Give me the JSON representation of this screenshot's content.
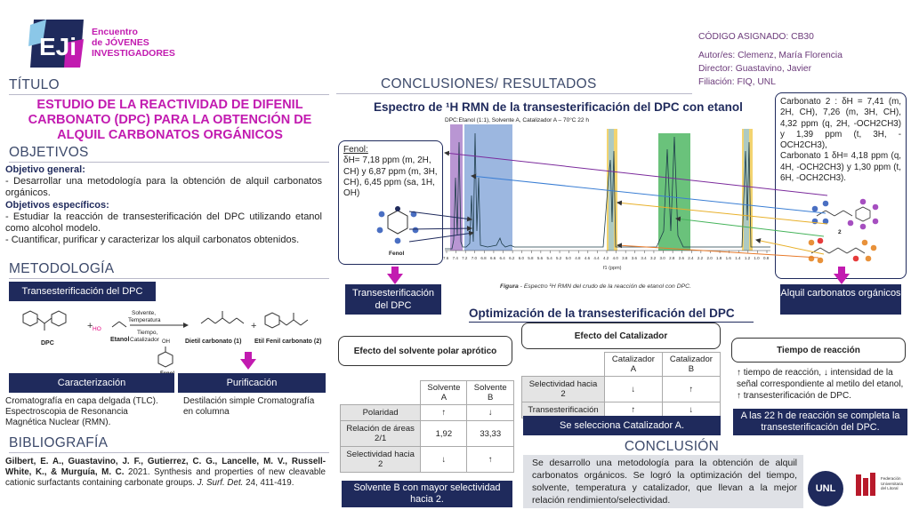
{
  "header": {
    "logo_text": "EJi",
    "event_line1": "Encuentro",
    "event_line2": "de JÓVENES",
    "event_line3": "INVESTIGADORES",
    "code": "CÓDIGO ASIGNADO: CB30",
    "authors": "Autor/es: Clemenz, María Florencia",
    "director": "Director: Guastavino, Javier",
    "affiliation": "Filiación: FIQ, UNL"
  },
  "titulo": {
    "label": "TÍTULO",
    "text": "ESTUDIO DE LA REACTIVIDAD DE DIFENIL CARBONATO (DPC) PARA LA OBTENCIÓN DE ALQUIL CARBONATOS ORGÁNICOS"
  },
  "objetivos": {
    "label": "OBJETIVOS",
    "general_title": "Objetivo general:",
    "general_text": "- Desarrollar una metodología para la obtención de alquil carbonatos orgánicos.",
    "specific_title": "Objetivos específicos:",
    "specific_1": "- Estudiar la reacción de transesterificación del DPC utilizando etanol como alcohol modelo.",
    "specific_2": "- Cuantificar, purificar y caracterizar los alquil carbonatos obtenidos."
  },
  "metodologia": {
    "label": "METODOLOGÍA",
    "trans_box": "Transesterificación del DPC",
    "dpc": "DPC",
    "etanol": "Etanol",
    "cond1": "Solvente,",
    "cond2": "Temperatura",
    "cond3": "Tiempo,",
    "cond4": "Catalizador",
    "fenol": "Fenol",
    "product1": "Dietil carbonato (1)",
    "product2": "Etil Fenil carbonato (2)",
    "caracterizacion": "Caracterización",
    "purificacion": "Purificación",
    "caract_text": "Cromatografía en capa delgada (TLC). Espectroscopia de Resonancia Magnética Nuclear (RMN).",
    "purif_text": "Destilación simple Cromatografía en columna"
  },
  "bibliografia": {
    "label": "BIBLIOGRAFÍA",
    "authors": "Gilbert, E. A., Guastavino, J. F., Gutierrez, C. G., Lancelle, M. V., Russell-White, K., & Murguía, M. C.",
    "rest": " 2021. Synthesis and properties of new cleavable cationic surfactants containing carbonate groups. ",
    "journal": "J. Surf. Det.",
    "pages": " 24, 411-419."
  },
  "conclusiones": {
    "label": "CONCLUSIONES/ RESULTADOS",
    "spectrum_title": "Espectro de ¹H RMN de la transesterificación del DPC con etanol",
    "spectrum_sub": "DPC:Etanol (1:1), Solvente A, Catalizador A – 70°C 22 h",
    "figure_caption_bold": "Figura",
    "figure_caption": " - Espectro ¹H RMN  del crudo de la reacción de etanol con DPC.",
    "axis_label": "f1 (ppm)",
    "fenol_title": "Fenol:",
    "fenol_data": "δH= 7,18 ppm (m, 2H, CH) y 6,87 ppm (m, 3H, CH), 6,45 ppm (sa, 1H, OH)",
    "fenol_struct": "Fenol",
    "carb2_data": "Carbonato 2 : δH = 7,41 (m, 2H, CH), 7,26 (m, 3H, CH), 4,32 ppm (q, 2H, -OCH2CH3) y 1,39 ppm (t, 3H, -OCH2CH3),",
    "carb1_data": "Carbonato 1  δH= 4,18 ppm (q, 4H, -OCH2CH3) y 1,30 ppm (t, 6H, -OCH2CH3).",
    "label2": "2",
    "label1": "1",
    "trans_label": "Transesterificación del DPC",
    "alquil_label": "Alquil carbonatos orgánicos"
  },
  "optimizacion": {
    "title": "Optimización de la transesterificación del DPC",
    "solvente_title": "Efecto del solvente polar aprótico",
    "solvente_headers": [
      "",
      "Solvente A",
      "Solvente B"
    ],
    "solvente_rows": [
      [
        "Polaridad",
        "↑",
        "↓"
      ],
      [
        "Relación de áreas 2/1",
        "1,92",
        "33,33"
      ],
      [
        "Selectividad hacia 2",
        "↓",
        "↑"
      ]
    ],
    "solvente_result": "Solvente B con mayor selectividad hacia 2.",
    "catalizador_title": "Efecto del Catalizador",
    "catalizador_headers": [
      "",
      "Catalizador A",
      "Catalizador B"
    ],
    "catalizador_rows": [
      [
        "Selectividad hacia 2",
        "↓",
        "↑"
      ],
      [
        "Transesterificación",
        "↑",
        "↓"
      ]
    ],
    "catalizador_result": "Se selecciona Catalizador A.",
    "tiempo_title": "Tiempo de reacción",
    "tiempo_text": "↑ tiempo de reacción, ↓ intensidad de la señal correspondiente al metilo del etanol, ↑ transesterificación de DPC.",
    "tiempo_result": "A las 22 h de reacción se completa la transesterificación del DPC."
  },
  "conclusion": {
    "label": "CONCLUSIÓN",
    "text": "Se desarrollo una metodología para la obtención de alquil carbonatos orgánicos. Se logró la optimización del tiempo, solvente, temperatura y catalizador, que llevan a la mejor relación rendimiento/selectividad."
  },
  "logos": {
    "unl": "UNL",
    "fed1": "Federación",
    "fed2": "Universitaria",
    "fed3": "del Litoral"
  },
  "spectrum": {
    "ticks": [
      "7.6",
      "7.4",
      "7.2",
      "7.0",
      "6.8",
      "6.6",
      "6.4",
      "6.2",
      "6.0",
      "5.8",
      "5.6",
      "5.4",
      "5.2",
      "5.0",
      "4.8",
      "4.6",
      "4.4",
      "4.2",
      "4.0",
      "3.8",
      "3.6",
      "3.4",
      "3.2",
      "3.0",
      "2.8",
      "2.6",
      "2.4",
      "2.2",
      "2.0",
      "1.8",
      "1.6",
      "1.4",
      "1.2",
      "1.0",
      "0.8"
    ]
  }
}
